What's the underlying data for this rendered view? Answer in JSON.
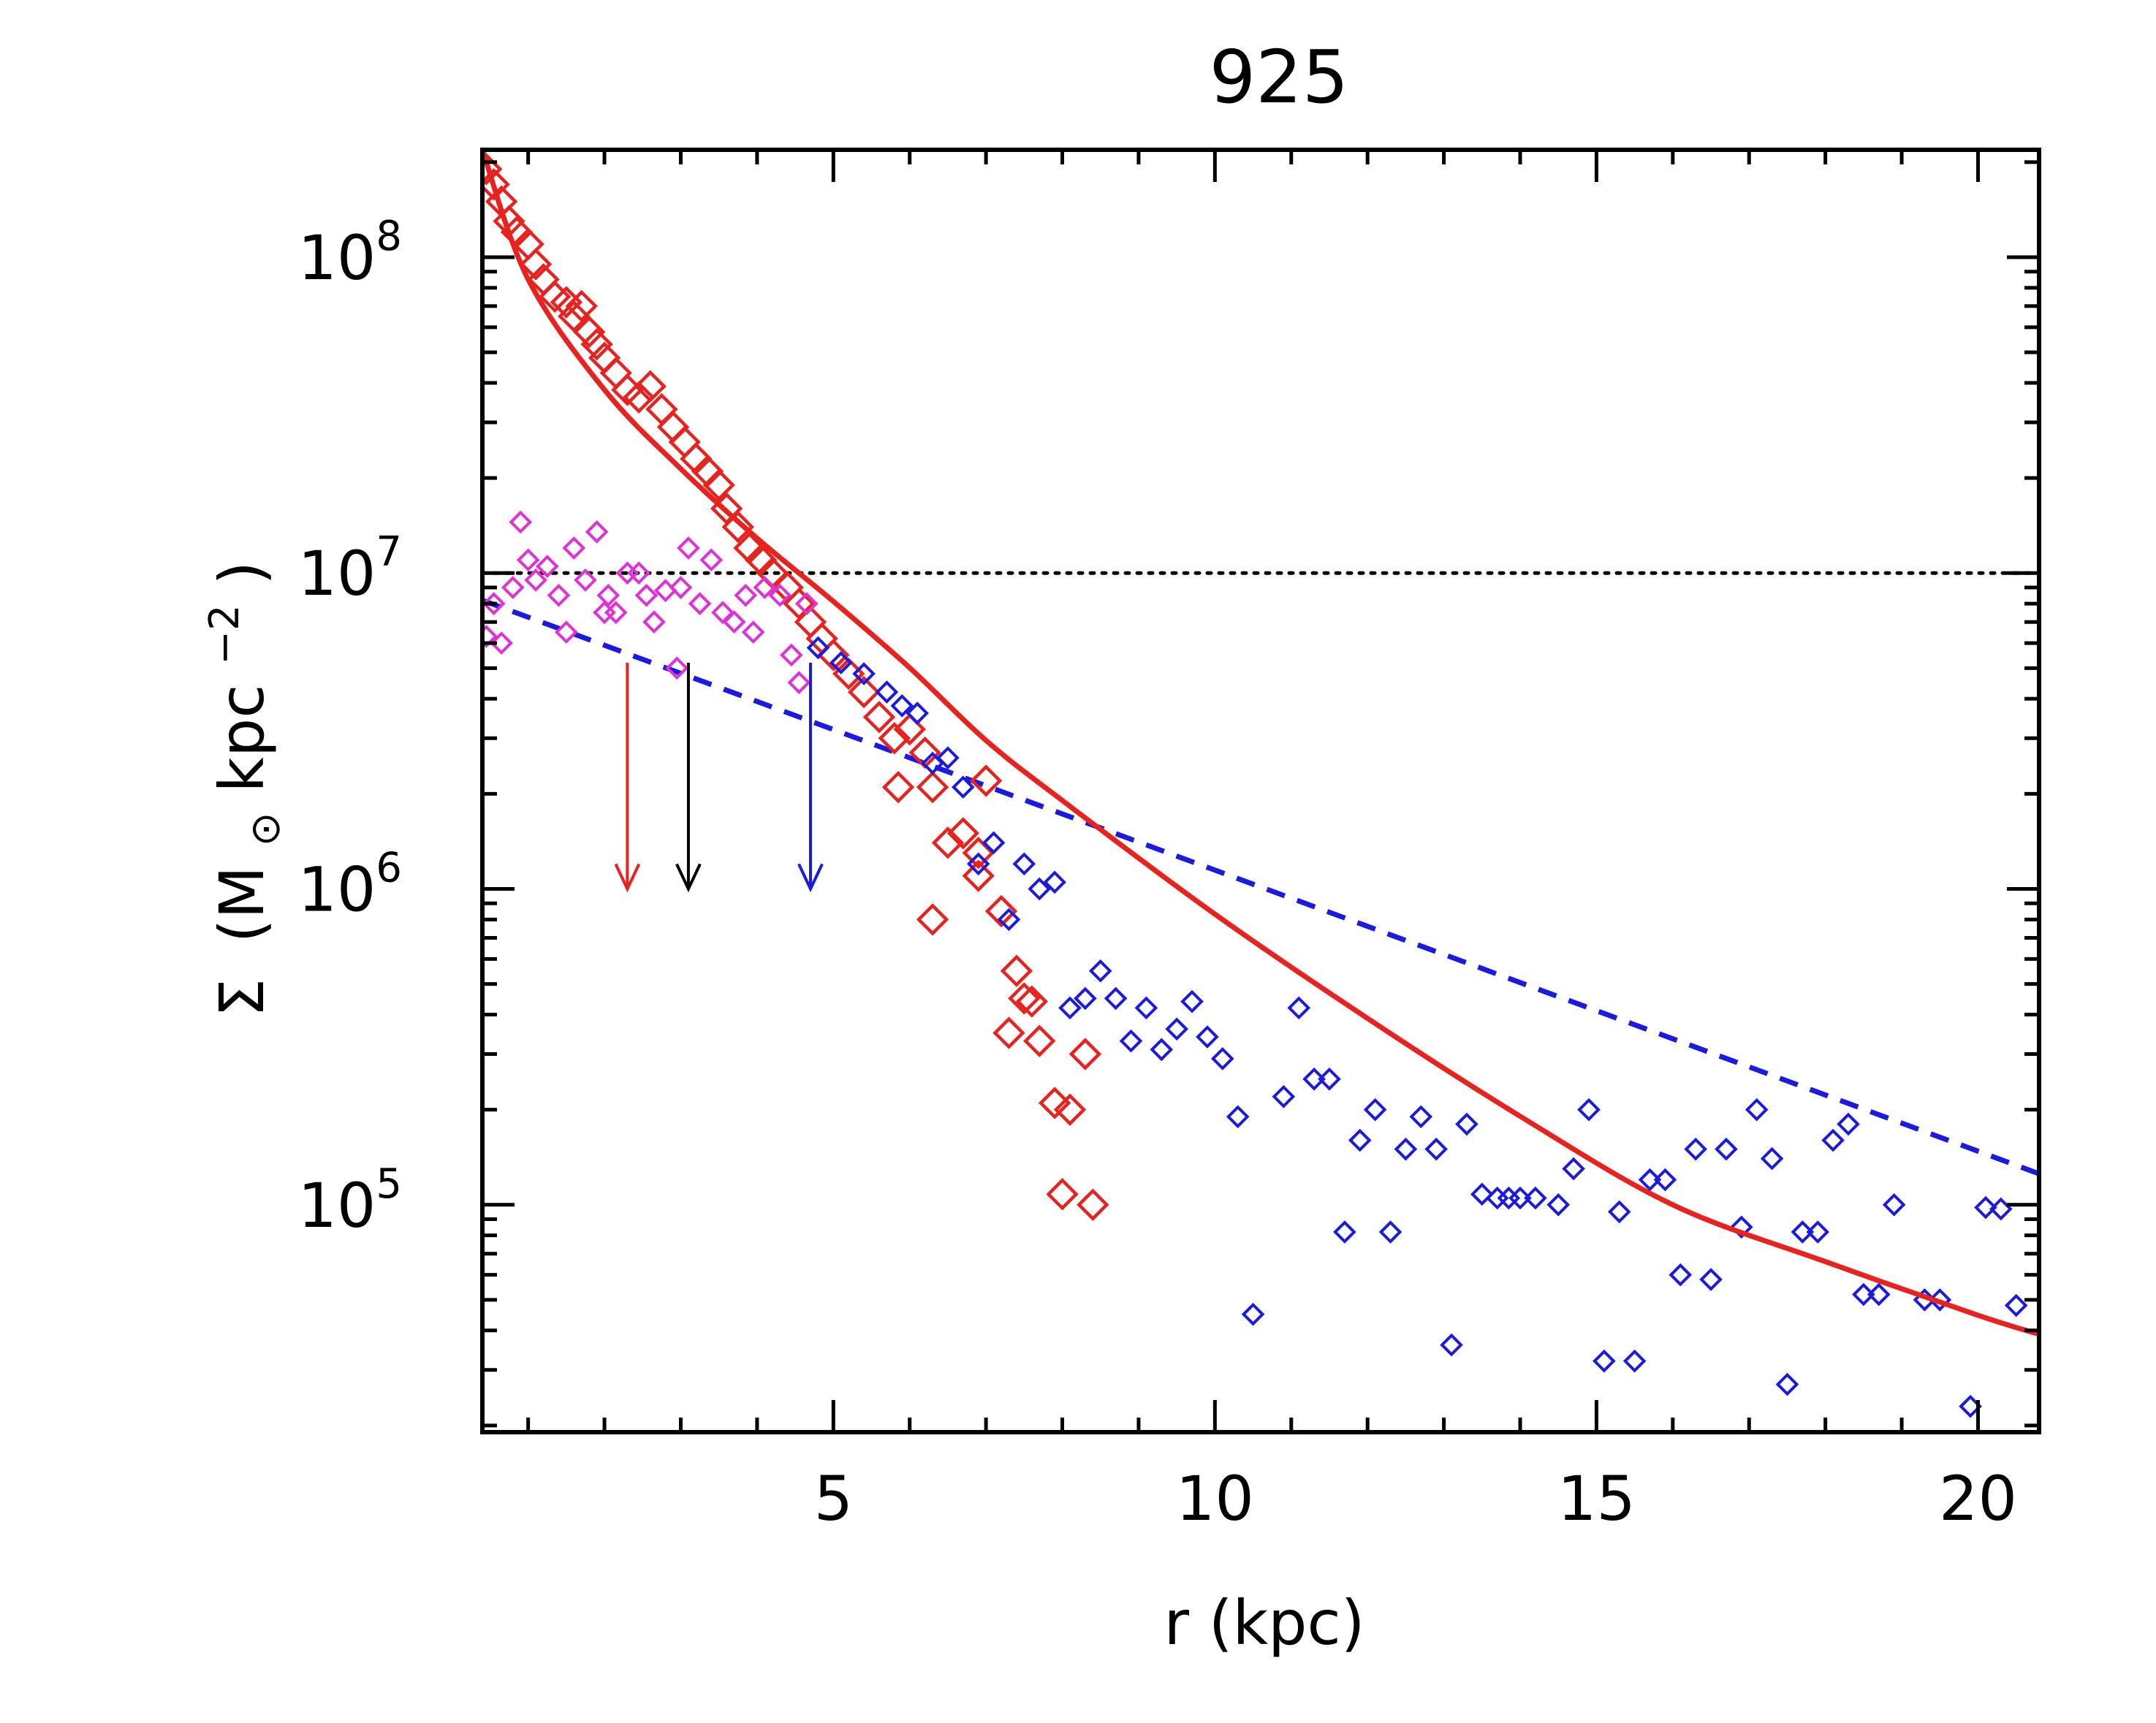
{
  "chart_data": {
    "type": "scatter",
    "title": "925",
    "xlabel": "r (kpc)",
    "ylabel_parts": {
      "sigma": "Σ",
      "open": "(M",
      "sun": "⊙",
      "unit": " kpc",
      "exp": "−2",
      "close": ")"
    },
    "xlim": [
      0.4,
      20.8
    ],
    "ylim_log10": [
      4.28,
      8.34
    ],
    "x_ticks": [
      {
        "value": 5,
        "label": "5"
      },
      {
        "value": 10,
        "label": "10"
      },
      {
        "value": 15,
        "label": "15"
      },
      {
        "value": 20,
        "label": "20"
      }
    ],
    "y_ticks": [
      {
        "exp": 5,
        "base": "10",
        "sup": "5"
      },
      {
        "exp": 6,
        "base": "10",
        "sup": "6"
      },
      {
        "exp": 7,
        "base": "10",
        "sup": "7"
      },
      {
        "exp": 8,
        "base": "10",
        "sup": "8"
      }
    ],
    "colors": {
      "red": "#e8231f",
      "blue": "#1a1ae0",
      "magenta": "#e030d8",
      "black": "#000000"
    },
    "reference_line": {
      "y": 10000000,
      "style": "dotted",
      "color": "#000000"
    },
    "exponential_fit": {
      "style": "dashed",
      "color": "#1a1ae0",
      "y0": 8900000,
      "scale_length_kpc": 4.88
    },
    "sersic_fit": {
      "style": "solid",
      "color": "#e8231f",
      "x_start": 0.4,
      "x_end": 20.8,
      "points": [
        [
          0.4,
          8.34
        ],
        [
          1.0,
          7.93
        ],
        [
          2.0,
          7.58
        ],
        [
          3.0,
          7.33
        ],
        [
          4.0,
          7.11
        ],
        [
          5.0,
          6.91
        ],
        [
          6.0,
          6.7
        ],
        [
          7.0,
          6.47
        ],
        [
          8.0,
          6.28
        ],
        [
          10.0,
          5.92
        ],
        [
          12.0,
          5.59
        ],
        [
          14.0,
          5.28
        ],
        [
          16.0,
          5.0
        ],
        [
          18.0,
          4.82
        ],
        [
          20.0,
          4.65
        ],
        [
          20.8,
          4.59
        ]
      ]
    },
    "arrows": [
      {
        "x": 2.3,
        "y_top": 5200000,
        "y_bottom": 1000000,
        "color": "#e8231f"
      },
      {
        "x": 3.1,
        "y_top": 5200000,
        "y_bottom": 1000000,
        "color": "#000000"
      },
      {
        "x": 4.7,
        "y_top": 5200000,
        "y_bottom": 1000000,
        "color": "#1a1ae0"
      }
    ],
    "series": [
      {
        "name": "red-points",
        "color": "#e8231f",
        "marker": "diamond-large",
        "points": [
          [
            0.45,
            190000000.0
          ],
          [
            0.55,
            170000000.0
          ],
          [
            0.65,
            150000000.0
          ],
          [
            0.75,
            130000000.0
          ],
          [
            0.85,
            120000000.0
          ],
          [
            1.0,
            110000000.0
          ],
          [
            1.1,
            95000000.0
          ],
          [
            1.2,
            85000000.0
          ],
          [
            1.35,
            75000000.0
          ],
          [
            1.5,
            72000000.0
          ],
          [
            1.6,
            65000000.0
          ],
          [
            1.7,
            70000000.0
          ],
          [
            1.8,
            58000000.0
          ],
          [
            1.9,
            53000000.0
          ],
          [
            2.0,
            48000000.0
          ],
          [
            2.15,
            43000000.0
          ],
          [
            2.3,
            38000000.0
          ],
          [
            2.45,
            36000000.0
          ],
          [
            2.6,
            39000000.0
          ],
          [
            2.75,
            33000000.0
          ],
          [
            2.9,
            29000000.0
          ],
          [
            3.05,
            26000000.0
          ],
          [
            3.2,
            23000000.0
          ],
          [
            3.35,
            21000000.0
          ],
          [
            3.5,
            19000000.0
          ],
          [
            3.6,
            16000000.0
          ],
          [
            3.75,
            14000000.0
          ],
          [
            3.9,
            12000000.0
          ],
          [
            4.05,
            11000000.0
          ],
          [
            4.2,
            10000000.0
          ],
          [
            4.4,
            9000000.0
          ],
          [
            4.55,
            8000000.0
          ],
          [
            4.7,
            7000000.0
          ],
          [
            4.85,
            6200000.0
          ],
          [
            5.0,
            5500000.0
          ],
          [
            5.2,
            4800000.0
          ],
          [
            5.4,
            4200000.0
          ],
          [
            5.6,
            3500000.0
          ],
          [
            5.8,
            3000000.0
          ],
          [
            6.0,
            3200000.0
          ],
          [
            6.2,
            2700000.0
          ],
          [
            5.85,
            2100000.0
          ],
          [
            6.3,
            2100000.0
          ],
          [
            6.5,
            1400000.0
          ],
          [
            6.7,
            1500000.0
          ],
          [
            6.9,
            1100000.0
          ],
          [
            6.3,
            800000.0
          ],
          [
            7.0,
            2200000.0
          ],
          [
            7.2,
            850000.0
          ],
          [
            7.4,
            550000.0
          ],
          [
            7.5,
            450000.0
          ],
          [
            7.3,
            350000.0
          ],
          [
            7.7,
            330000.0
          ],
          [
            7.9,
            210000.0
          ],
          [
            8.1,
            200000.0
          ],
          [
            8.3,
            300000.0
          ],
          [
            8.0,
            108000.0
          ],
          [
            8.4,
            100000.0
          ],
          [
            6.9,
            1300000.0
          ],
          [
            7.6,
            440000.0
          ]
        ]
      },
      {
        "name": "magenta-points",
        "color": "#e030d8",
        "marker": "diamond-small",
        "points": [
          [
            0.45,
            6300000.0
          ],
          [
            0.55,
            8000000.0
          ],
          [
            0.65,
            6000000.0
          ],
          [
            0.8,
            9000000.0
          ],
          [
            0.9,
            14500000.0
          ],
          [
            1.0,
            11000000.0
          ],
          [
            1.1,
            9500000.0
          ],
          [
            1.25,
            10500000.0
          ],
          [
            1.4,
            8500000.0
          ],
          [
            1.5,
            6500000.0
          ],
          [
            1.6,
            12000000.0
          ],
          [
            1.75,
            9500000.0
          ],
          [
            1.9,
            13500000.0
          ],
          [
            2.05,
            8500000.0
          ],
          [
            2.15,
            7500000.0
          ],
          [
            2.3,
            10000000.0
          ],
          [
            2.45,
            10000000.0
          ],
          [
            2.55,
            8500000.0
          ],
          [
            2.65,
            7000000.0
          ],
          [
            2.8,
            8800000.0
          ],
          [
            2.95,
            5000000.0
          ],
          [
            3.1,
            12000000.0
          ],
          [
            3.25,
            8000000.0
          ],
          [
            3.4,
            11000000.0
          ],
          [
            3.55,
            7500000.0
          ],
          [
            3.7,
            7000000.0
          ],
          [
            3.85,
            8500000.0
          ],
          [
            3.95,
            6500000.0
          ],
          [
            4.1,
            9000000.0
          ],
          [
            4.3,
            8500000.0
          ],
          [
            4.45,
            5500000.0
          ],
          [
            4.55,
            4500000.0
          ],
          [
            4.65,
            8000000.0
          ],
          [
            2.0,
            7500000.0
          ],
          [
            3.0,
            9000000.0
          ]
        ]
      },
      {
        "name": "blue-points",
        "color": "#1a1ae0",
        "marker": "diamond-small",
        "points": [
          [
            4.8,
            5800000.0
          ],
          [
            5.1,
            5200000.0
          ],
          [
            5.4,
            4800000.0
          ],
          [
            5.7,
            4200000.0
          ],
          [
            5.9,
            3800000.0
          ],
          [
            6.1,
            3600000.0
          ],
          [
            6.3,
            2500000.0
          ],
          [
            6.5,
            2600000.0
          ],
          [
            6.7,
            2100000.0
          ],
          [
            6.9,
            1200000.0
          ],
          [
            7.1,
            1400000.0
          ],
          [
            7.3,
            800000.0
          ],
          [
            7.5,
            1200000.0
          ],
          [
            7.7,
            1000000.0
          ],
          [
            7.9,
            1050000.0
          ],
          [
            8.1,
            420000.0
          ],
          [
            8.3,
            450000.0
          ],
          [
            8.5,
            550000.0
          ],
          [
            8.7,
            450000.0
          ],
          [
            8.9,
            330000.0
          ],
          [
            9.1,
            420000.0
          ],
          [
            9.3,
            310000.0
          ],
          [
            9.5,
            360000.0
          ],
          [
            9.7,
            440000.0
          ],
          [
            9.9,
            340000.0
          ],
          [
            10.1,
            290000.0
          ],
          [
            10.3,
            190000.0
          ],
          [
            10.5,
            45000.0
          ],
          [
            10.9,
            220000.0
          ],
          [
            11.1,
            420000.0
          ],
          [
            11.3,
            250000.0
          ],
          [
            11.5,
            250000.0
          ],
          [
            11.7,
            82000.0
          ],
          [
            11.9,
            160000.0
          ],
          [
            12.1,
            200000.0
          ],
          [
            12.3,
            82000.0
          ],
          [
            12.5,
            150000.0
          ],
          [
            12.7,
            190000.0
          ],
          [
            12.9,
            150000.0
          ],
          [
            13.1,
            36000.0
          ],
          [
            13.3,
            180000.0
          ],
          [
            13.5,
            108000.0
          ],
          [
            13.7,
            105000.0
          ],
          [
            13.85,
            105000.0
          ],
          [
            14.0,
            105000.0
          ],
          [
            14.2,
            105000.0
          ],
          [
            14.5,
            100000.0
          ],
          [
            14.7,
            130000.0
          ],
          [
            14.9,
            200000.0
          ],
          [
            15.1,
            32000.0
          ],
          [
            15.3,
            95000.0
          ],
          [
            15.5,
            32000.0
          ],
          [
            15.7,
            120000.0
          ],
          [
            15.9,
            120000.0
          ],
          [
            16.1,
            60000.0
          ],
          [
            16.3,
            150000.0
          ],
          [
            16.5,
            58000.0
          ],
          [
            16.7,
            150000.0
          ],
          [
            16.9,
            85000.0
          ],
          [
            17.1,
            200000.0
          ],
          [
            17.3,
            140000.0
          ],
          [
            17.5,
            27000.0
          ],
          [
            17.7,
            82000.0
          ],
          [
            17.9,
            82000.0
          ],
          [
            18.1,
            160000.0
          ],
          [
            18.3,
            180000.0
          ],
          [
            18.5,
            52000.0
          ],
          [
            18.7,
            52000.0
          ],
          [
            18.9,
            100000.0
          ],
          [
            19.3,
            50000.0
          ],
          [
            19.5,
            50000.0
          ],
          [
            19.9,
            23000.0
          ],
          [
            20.1,
            98000.0
          ],
          [
            20.3,
            97000.0
          ],
          [
            20.5,
            48000.0
          ]
        ]
      }
    ]
  }
}
